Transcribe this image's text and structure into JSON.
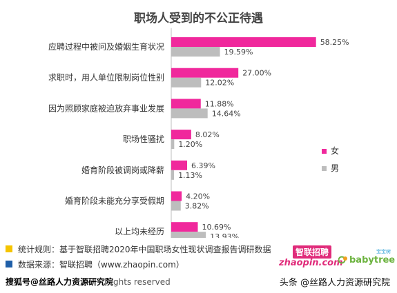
{
  "chart_data": {
    "type": "bar",
    "orientation": "horizontal",
    "title": "职场人受到的不公正待遇",
    "categories": [
      "应聘过程中被问及婚姻生育状况",
      "求职时，用人单位限制岗位性别",
      "因为照顾家庭被迫放弃事业发展",
      "职场性骚扰",
      "婚育阶段被调岗或降薪",
      "婚育阶段未能充分享受假期",
      "以上均未经历"
    ],
    "series": [
      {
        "name": "女",
        "values": [
          58.25,
          27.0,
          11.88,
          8.02,
          6.39,
          4.2,
          10.69
        ],
        "color": "#f0289c"
      },
      {
        "name": "男",
        "values": [
          19.59,
          12.02,
          14.64,
          1.2,
          1.13,
          3.82,
          13.93
        ],
        "color": "#bdbdbd"
      }
    ],
    "value_labels": {
      "female": [
        "58.25%",
        "27.00%",
        "11.88%",
        "8.02%",
        "6.39%",
        "4.20%",
        "10.69%"
      ],
      "male": [
        "19.59%",
        "12.02%",
        "14.64%",
        "1.20%",
        "1.13%",
        "3.82%",
        "13.93%"
      ]
    },
    "xlim": [
      0,
      60
    ],
    "grid": false,
    "legend_position": "right"
  },
  "legend": {
    "female": "女",
    "male": "男"
  },
  "notes": {
    "stat_rule": "统计规则：基于智联招聘2020年中国职场女性现状调查报告调研数据",
    "data_source": "数据来源：智联招聘（www.zhaopin.com）",
    "stat_rule_color": "#f5c400",
    "data_source_color": "#1f5fa8"
  },
  "logos": {
    "zhaopin_cn": "智联招聘",
    "zhaopin_en": "zhaopin.com",
    "babytree_cn": "宝宝树",
    "babytree_en": "babytree"
  },
  "footer": {
    "watermark_left": "搜狐号@丝路人力资源研究院",
    "copyright_tail": "ghts reserved",
    "watermark_right": "头条 @丝路人力资源研究院"
  }
}
